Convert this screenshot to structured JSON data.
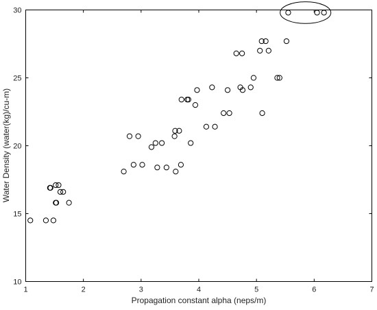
{
  "chart_data": {
    "type": "scatter",
    "title": "",
    "xlabel": "Propagation constant alpha (neps/m)",
    "ylabel": "Water Density (water(kg)/cu-m)",
    "xlim": [
      1,
      7
    ],
    "ylim": [
      10,
      30
    ],
    "xticks": [
      "1",
      "2",
      "3",
      "4",
      "5",
      "6",
      "7"
    ],
    "yticks": [
      "10",
      "15",
      "20",
      "25",
      "30"
    ],
    "grid": false,
    "marker": "open-circle",
    "series": [
      {
        "points": [
          [
            1.08,
            14.5
          ],
          [
            1.35,
            14.5
          ],
          [
            1.48,
            14.5
          ],
          [
            1.42,
            16.9
          ],
          [
            1.43,
            16.9
          ],
          [
            1.52,
            17.1
          ],
          [
            1.57,
            17.1
          ],
          [
            1.6,
            16.6
          ],
          [
            1.65,
            16.6
          ],
          [
            1.52,
            15.8
          ],
          [
            1.53,
            15.8
          ],
          [
            1.75,
            15.8
          ],
          [
            2.7,
            18.1
          ],
          [
            2.8,
            20.7
          ],
          [
            2.87,
            18.6
          ],
          [
            2.95,
            20.7
          ],
          [
            3.02,
            18.6
          ],
          [
            3.18,
            19.9
          ],
          [
            3.25,
            20.2
          ],
          [
            3.28,
            18.4
          ],
          [
            3.36,
            20.2
          ],
          [
            3.44,
            18.4
          ],
          [
            3.58,
            20.7
          ],
          [
            3.59,
            21.1
          ],
          [
            3.6,
            18.1
          ],
          [
            3.66,
            21.1
          ],
          [
            3.69,
            18.6
          ],
          [
            3.7,
            23.4
          ],
          [
            3.8,
            23.4
          ],
          [
            3.82,
            23.4
          ],
          [
            3.86,
            20.2
          ],
          [
            3.94,
            23.0
          ],
          [
            3.97,
            24.1
          ],
          [
            4.13,
            21.4
          ],
          [
            4.23,
            24.3
          ],
          [
            4.28,
            21.4
          ],
          [
            4.43,
            22.4
          ],
          [
            4.5,
            24.1
          ],
          [
            4.53,
            22.4
          ],
          [
            4.65,
            26.8
          ],
          [
            4.72,
            24.3
          ],
          [
            4.75,
            26.8
          ],
          [
            4.76,
            24.1
          ],
          [
            4.9,
            24.3
          ],
          [
            4.95,
            25.0
          ],
          [
            5.06,
            27.0
          ],
          [
            5.09,
            27.7
          ],
          [
            5.1,
            22.4
          ],
          [
            5.16,
            27.7
          ],
          [
            5.21,
            27.0
          ],
          [
            5.36,
            25.0
          ],
          [
            5.4,
            25.0
          ],
          [
            5.52,
            27.7
          ],
          [
            5.55,
            29.8
          ],
          [
            6.05,
            29.8
          ],
          [
            6.17,
            29.8
          ]
        ]
      }
    ],
    "annotations": [
      {
        "type": "ellipse",
        "center": [
          5.85,
          29.8
        ],
        "radii": [
          0.44,
          0.8
        ]
      }
    ]
  }
}
